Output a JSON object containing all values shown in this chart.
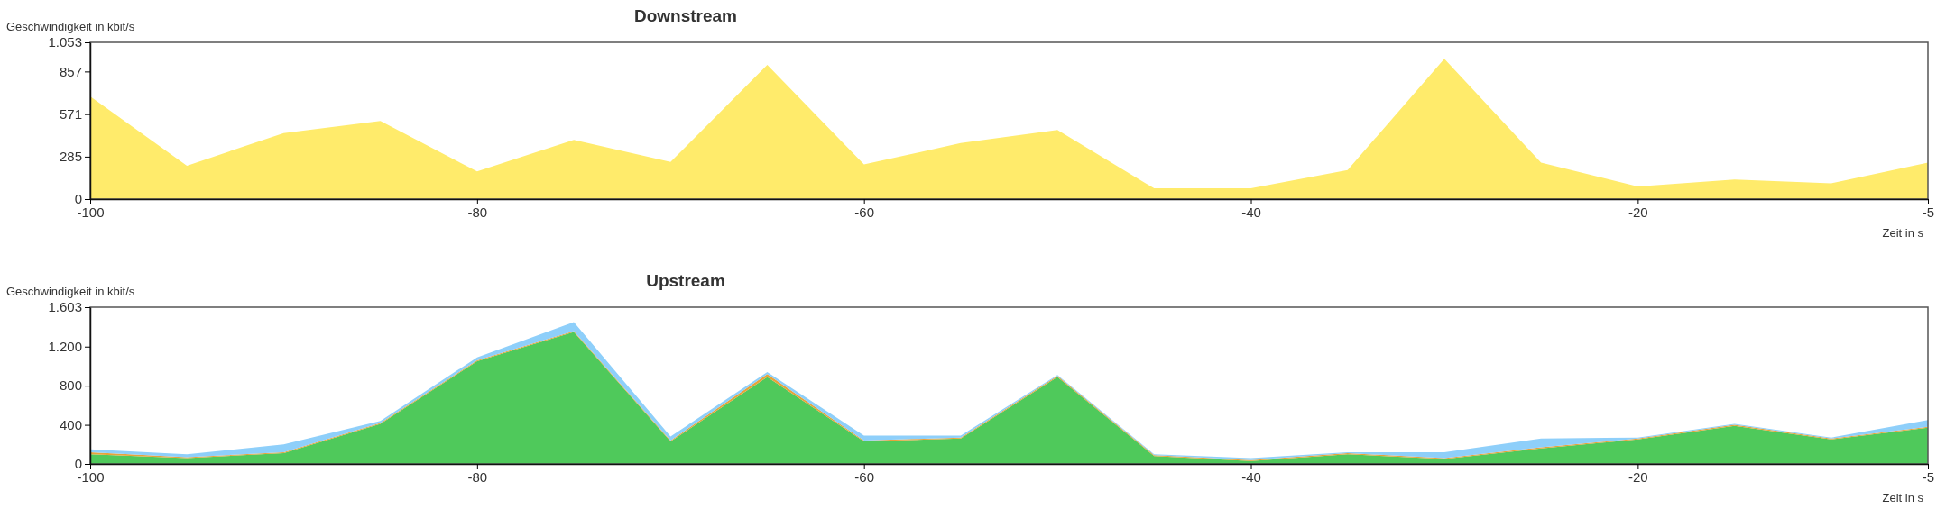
{
  "chart_data": [
    {
      "type": "area",
      "title": "Downstream",
      "ylabel": "Geschwindigkeit in kbit/s",
      "xlabel": "Zeit in s",
      "x": [
        -100,
        -95,
        -90,
        -85,
        -80,
        -75,
        -70,
        -65,
        -60,
        -55,
        -50,
        -45,
        -40,
        -35,
        -30,
        -25,
        -20,
        -15,
        -10,
        -5
      ],
      "series": [
        {
          "color": "#ffeb6b",
          "values": [
            690,
            224,
            444,
            525,
            186,
            398,
            250,
            901,
            233,
            376,
            465,
            72,
            72,
            195,
            943,
            245,
            85,
            131,
            106,
            245
          ]
        }
      ],
      "xlim": [
        -100,
        -5
      ],
      "xticks": [
        -100,
        -80,
        -60,
        -40,
        -20,
        -5
      ],
      "ylim": [
        0,
        1053
      ],
      "yticks": [
        0,
        285,
        571,
        857,
        {
          "value": 1053,
          "label": "1.053"
        }
      ]
    },
    {
      "type": "area",
      "title": "Upstream",
      "ylabel": "Geschwindigkeit in kbit/s",
      "xlabel": "Zeit in s",
      "stacked": true,
      "x": [
        -100,
        -95,
        -90,
        -85,
        -80,
        -75,
        -70,
        -65,
        -60,
        -55,
        -50,
        -45,
        -40,
        -35,
        -30,
        -25,
        -20,
        -15,
        -10,
        -5
      ],
      "series": [
        {
          "color": "#4fc95b",
          "values": [
            100,
            60,
            110,
            410,
            1050,
            1350,
            230,
            890,
            230,
            260,
            890,
            80,
            30,
            100,
            50,
            160,
            250,
            390,
            250,
            370
          ]
        },
        {
          "color": "#e8a33a",
          "values": [
            20,
            10,
            10,
            10,
            10,
            10,
            10,
            30,
            10,
            10,
            10,
            10,
            10,
            10,
            10,
            10,
            10,
            10,
            10,
            10
          ]
        },
        {
          "color": "#8ecffa",
          "values": [
            30,
            30,
            80,
            20,
            30,
            90,
            40,
            20,
            50,
            20,
            10,
            10,
            20,
            10,
            60,
            90,
            10,
            10,
            10,
            70
          ]
        }
      ],
      "xlim": [
        -100,
        -5
      ],
      "xticks": [
        -100,
        -80,
        -60,
        -40,
        -20,
        -5
      ],
      "ylim": [
        0,
        1603
      ],
      "yticks": [
        0,
        400,
        800,
        {
          "value": 1200,
          "label": "1.200"
        },
        {
          "value": 1603,
          "label": "1.603"
        }
      ]
    }
  ]
}
